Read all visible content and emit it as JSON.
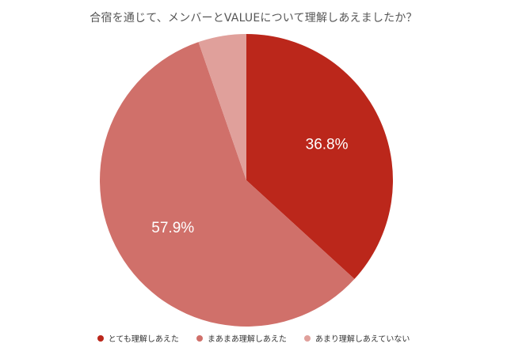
{
  "chart_data": {
    "type": "pie",
    "title": "合宿を通じて、メンバーとVALUEについて理解しあえましたか？",
    "slices": [
      {
        "label": "とても理解しあえた",
        "value": 36.8,
        "value_label": "36.8%",
        "color": "#bb271b"
      },
      {
        "label": "まあまあ理解しあえた",
        "value": 57.9,
        "value_label": "57.9%",
        "color": "#d0706a"
      },
      {
        "label": "あまり理解しあえていない",
        "value": 5.3,
        "value_label": "",
        "color": "#e0a09b"
      }
    ],
    "legend_position": "bottom"
  }
}
